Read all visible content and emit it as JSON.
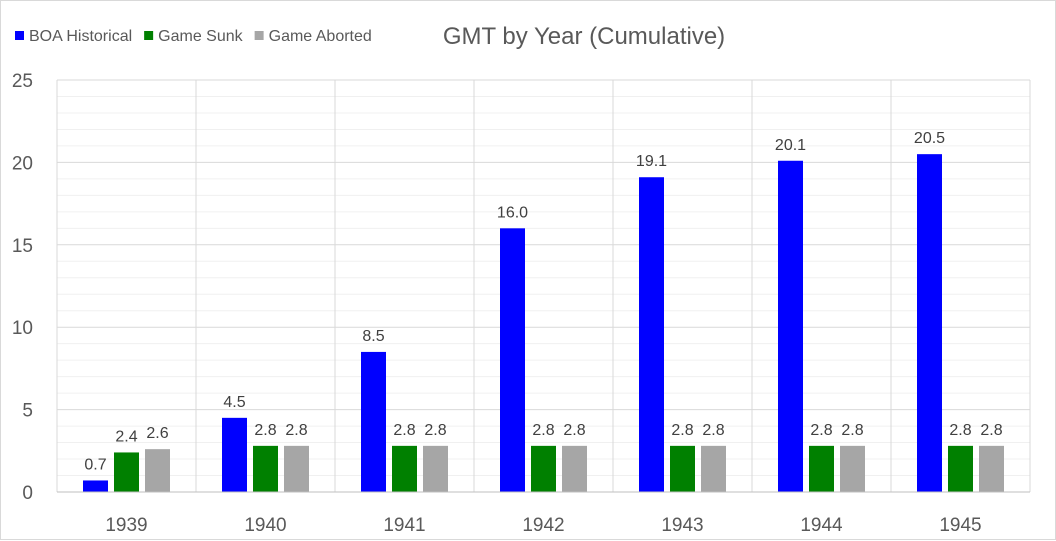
{
  "chart_data": {
    "type": "bar",
    "title": "GMT by Year (Cumulative)",
    "xlabel": "",
    "ylabel": "",
    "categories": [
      "1939",
      "1940",
      "1941",
      "1942",
      "1943",
      "1944",
      "1945"
    ],
    "series": [
      {
        "name": "BOA Historical",
        "color": "#0000ff",
        "values": [
          0.7,
          4.5,
          8.5,
          16.0,
          19.1,
          20.1,
          20.5
        ],
        "labels": [
          "0.7",
          "4.5",
          "8.5",
          "16.0",
          "19.1",
          "20.1",
          "20.5"
        ]
      },
      {
        "name": "Game Sunk",
        "color": "#008000",
        "values": [
          2.4,
          2.8,
          2.8,
          2.8,
          2.8,
          2.8,
          2.8
        ],
        "labels": [
          "2.4",
          "2.8",
          "2.8",
          "2.8",
          "2.8",
          "2.8",
          "2.8"
        ]
      },
      {
        "name": "Game Aborted",
        "color": "#a6a6a6",
        "values": [
          2.6,
          2.8,
          2.8,
          2.8,
          2.8,
          2.8,
          2.8
        ],
        "labels": [
          "2.6",
          "2.8",
          "2.8",
          "2.8",
          "2.8",
          "2.8",
          "2.8"
        ]
      }
    ],
    "ylim": [
      0,
      25
    ],
    "yticks": [
      "0",
      "5",
      "10",
      "15",
      "20",
      "25"
    ],
    "ytick_values": [
      0,
      5,
      10,
      15,
      20,
      25
    ],
    "minor_grid_step": 1,
    "grid": true,
    "legend_position": "top-left"
  }
}
